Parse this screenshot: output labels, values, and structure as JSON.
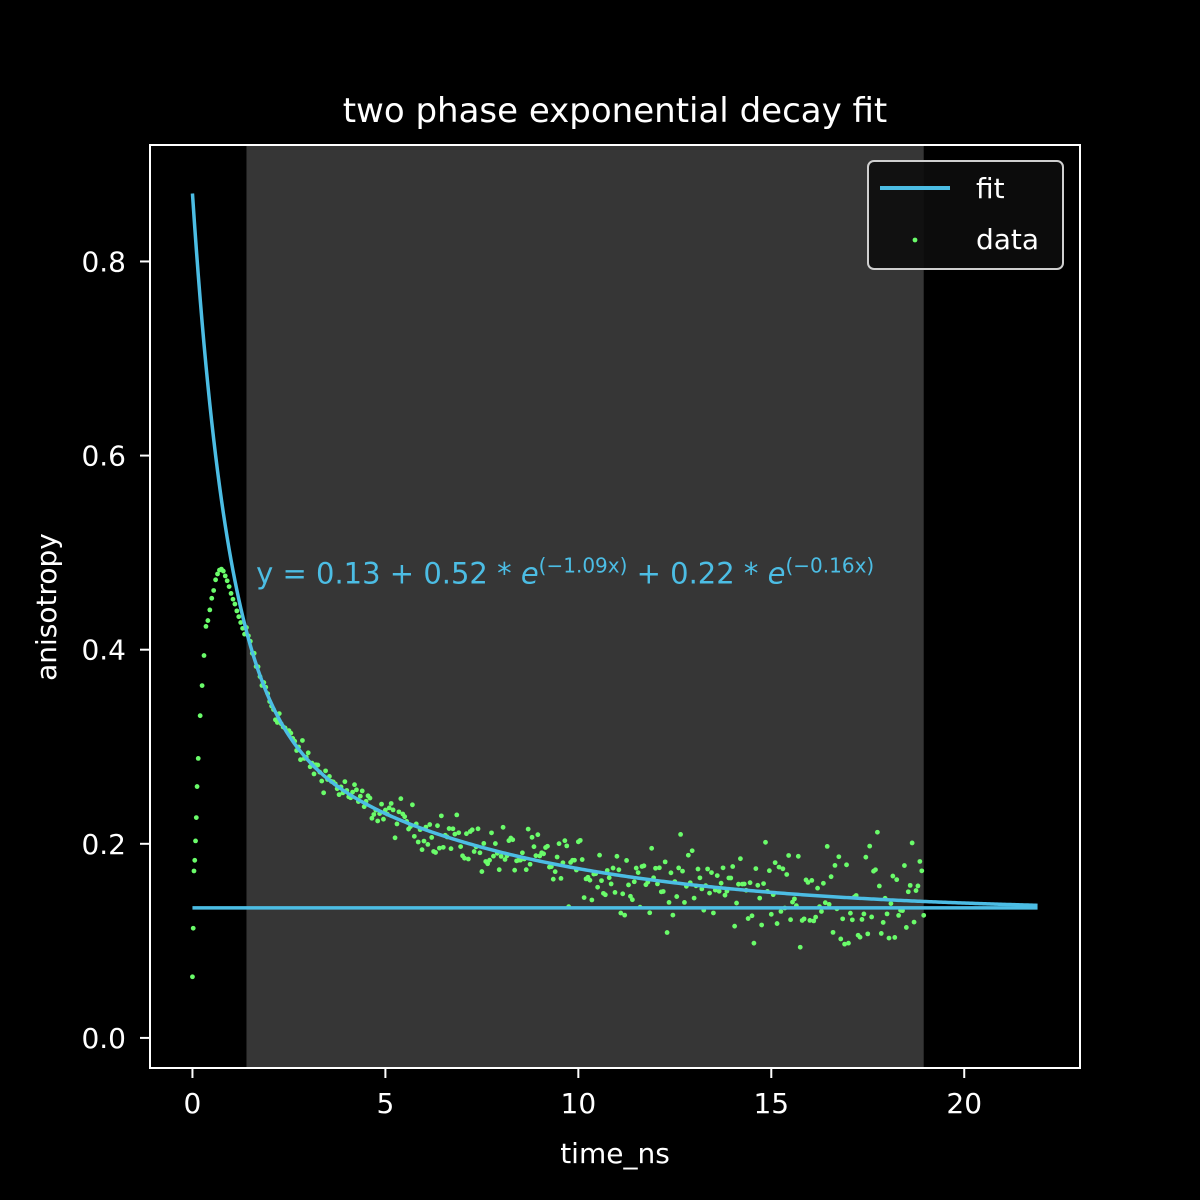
{
  "chart_data": {
    "type": "scatter",
    "title": "two phase exponential decay fit",
    "xlabel": "time_ns",
    "ylabel": "anisotropy",
    "xlim": [
      -1.1,
      23.0
    ],
    "ylim": [
      -0.031,
      0.92
    ],
    "x_ticks": [
      0,
      5,
      10,
      15,
      20
    ],
    "y_ticks": [
      0.0,
      0.2,
      0.4,
      0.6,
      0.8
    ],
    "x_tick_labels": [
      "0",
      "5",
      "10",
      "15",
      "20"
    ],
    "y_tick_labels": [
      "0.0",
      "0.2",
      "0.4",
      "0.6",
      "0.8"
    ],
    "fit_region": [
      1.4,
      18.95
    ],
    "grid": false,
    "legend": {
      "position": "top-right",
      "entries": [
        {
          "label": "fit",
          "kind": "line"
        },
        {
          "label": "data",
          "kind": "points"
        }
      ]
    },
    "fit_model": {
      "y0": 0.13,
      "a1": 0.52,
      "k1": 1.09,
      "a2": 0.22,
      "k2": 0.16,
      "x_start": 0.0,
      "x_end": 21.9
    },
    "baseline": 0.134,
    "annotation": {
      "prefix": "y = 0.13 + 0.52 * ",
      "e1": "e",
      "exp1": "(−1.09x)",
      "mid": " + 0.22 * ",
      "e2": "e",
      "exp2": "(−0.16x)",
      "x": 1.65,
      "y": 0.468
    },
    "series": [
      {
        "name": "data",
        "points": [
          [
            0.0,
            0.063
          ],
          [
            0.02,
            0.113
          ],
          [
            0.04,
            0.172
          ],
          [
            0.06,
            0.183
          ],
          [
            0.08,
            0.203
          ],
          [
            0.1,
            0.227
          ],
          [
            0.12,
            0.259
          ],
          [
            0.15,
            0.288
          ],
          [
            0.2,
            0.332
          ],
          [
            0.25,
            0.363
          ],
          [
            0.3,
            0.394
          ],
          [
            0.35,
            0.424
          ],
          [
            0.4,
            0.43
          ],
          [
            0.45,
            0.441
          ],
          [
            0.5,
            0.453
          ],
          [
            0.55,
            0.461
          ],
          [
            0.6,
            0.472
          ],
          [
            0.65,
            0.478
          ],
          [
            0.7,
            0.482
          ],
          [
            0.75,
            0.483
          ],
          [
            0.8,
            0.481
          ],
          [
            0.85,
            0.476
          ],
          [
            0.9,
            0.471
          ],
          [
            0.95,
            0.465
          ],
          [
            1.0,
            0.458
          ],
          [
            1.05,
            0.452
          ],
          [
            1.1,
            0.447
          ],
          [
            1.15,
            0.44
          ],
          [
            1.2,
            0.434
          ],
          [
            1.25,
            0.428
          ],
          [
            1.3,
            0.422
          ],
          [
            1.35,
            0.416
          ]
        ],
        "model_segment": {
          "x_start": 1.4,
          "x_end": 18.95,
          "step": 0.05
        },
        "color": "#6afc6a"
      },
      {
        "name": "fit",
        "color": "#4cbde4"
      }
    ]
  },
  "colors": {
    "background": "#000000",
    "fit_region": "#363636",
    "axes": "#ffffff",
    "fit": "#4cbde4",
    "data": "#6afc6a"
  }
}
